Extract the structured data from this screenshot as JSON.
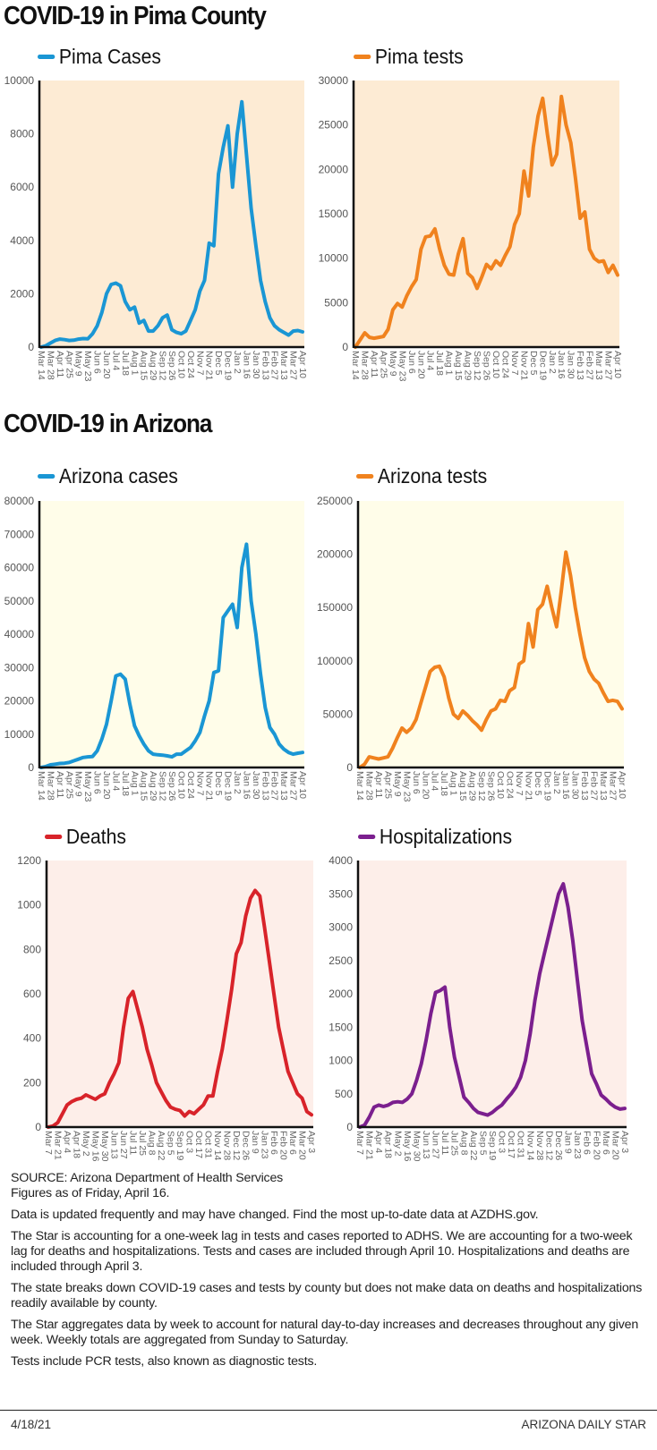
{
  "headings": {
    "pima": "COVID-19 in Pima County",
    "arizona": "COVID-19 in Arizona"
  },
  "chart_data": [
    {
      "type": "line",
      "legend": "Pima Cases",
      "color": "#1a96d4",
      "background": "#fdebd4",
      "ylim": [
        0,
        10000
      ],
      "yticks": [
        0,
        2000,
        4000,
        6000,
        8000,
        10000
      ],
      "x_tick_labels": [
        "Mar 14",
        "Mar 28",
        "Apr 11",
        "Apr 25",
        "May 9",
        "May 23",
        "Jun 6",
        "Jun 20",
        "Jul 4",
        "Jul 18",
        "Aug 1",
        "Aug 15",
        "Aug 29",
        "Sep 12",
        "Sep 26",
        "Oct 10",
        "Oct 24",
        "Nov 7",
        "Nov 21",
        "Dec 5",
        "Dec 19",
        "Jan 2",
        "Jan 16",
        "Jan 30",
        "Feb 13",
        "Feb 27",
        "Mar 13",
        "Mar 27",
        "Apr 10"
      ],
      "values": [
        0,
        50,
        150,
        250,
        300,
        280,
        250,
        260,
        300,
        320,
        310,
        500,
        800,
        1300,
        2000,
        2350,
        2400,
        2300,
        1700,
        1400,
        1500,
        900,
        1000,
        600,
        600,
        800,
        1100,
        1200,
        650,
        550,
        500,
        600,
        1000,
        1400,
        2100,
        2500,
        3900,
        3800,
        6500,
        7500,
        8300,
        6000,
        8000,
        9200,
        7200,
        5200,
        3800,
        2500,
        1700,
        1100,
        800,
        650,
        550,
        450,
        600,
        620,
        570
      ]
    },
    {
      "type": "line",
      "legend": "Pima tests",
      "color": "#f0821e",
      "background": "#fdebd4",
      "ylim": [
        0,
        30000
      ],
      "yticks": [
        0,
        5000,
        10000,
        15000,
        20000,
        25000,
        30000
      ],
      "x_tick_labels": [
        "Mar 14",
        "Mar 28",
        "Apr 11",
        "Apr 25",
        "May 9",
        "May 23",
        "Jun 6",
        "Jun 20",
        "Jul 4",
        "Jul 18",
        "Aug 1",
        "Aug 15",
        "Aug 29",
        "Sep 12",
        "Sep 26",
        "Oct 10",
        "Oct 24",
        "Nov 7",
        "Nov 21",
        "Dec 5",
        "Dec 19",
        "Jan 2",
        "Jan 16",
        "Jan 30",
        "Feb 13",
        "Feb 27",
        "Mar 13",
        "Mar 27",
        "Apr 10"
      ],
      "values": [
        0,
        800,
        1600,
        1100,
        1000,
        1100,
        1200,
        2000,
        4200,
        4900,
        4500,
        5800,
        6800,
        7600,
        11000,
        12400,
        12500,
        13300,
        11000,
        9200,
        8200,
        8100,
        10500,
        12200,
        8300,
        7800,
        6600,
        7900,
        9300,
        8800,
        9700,
        9200,
        10300,
        11300,
        13800,
        15000,
        19800,
        17000,
        22500,
        26000,
        28000,
        24000,
        20500,
        21700,
        28200,
        25000,
        23000,
        19000,
        14500,
        15200,
        11000,
        10000,
        9600,
        9700,
        8400,
        9200,
        8100
      ]
    },
    {
      "type": "line",
      "legend": "Arizona cases",
      "color": "#1a96d4",
      "background": "#fffde9",
      "ylim": [
        0,
        80000
      ],
      "yticks": [
        0,
        10000,
        20000,
        30000,
        40000,
        50000,
        60000,
        70000,
        80000
      ],
      "x_tick_labels": [
        "Mar 14",
        "Mar 28",
        "Apr 11",
        "Apr 25",
        "May 9",
        "May 23",
        "Jun 6",
        "Jun 20",
        "Jul 4",
        "Jul 18",
        "Aug 1",
        "Aug 15",
        "Aug 29",
        "Sep 12",
        "Sep 26",
        "Oct 10",
        "Oct 24",
        "Nov 7",
        "Nov 21",
        "Dec 5",
        "Dec 19",
        "Jan 2",
        "Jan 16",
        "Jan 30",
        "Feb 13",
        "Feb 27",
        "Mar 13",
        "Mar 27",
        "Apr 10"
      ],
      "values": [
        0,
        300,
        800,
        1000,
        1200,
        1300,
        1500,
        2000,
        2500,
        3000,
        3200,
        3300,
        5000,
        8500,
        13000,
        20000,
        27500,
        28000,
        26500,
        19000,
        12500,
        9500,
        7000,
        5000,
        4000,
        3800,
        3700,
        3500,
        3200,
        4000,
        4000,
        5000,
        6000,
        8000,
        10500,
        15500,
        20000,
        28500,
        29000,
        45000,
        47000,
        49000,
        42000,
        60000,
        67000,
        50000,
        40000,
        28000,
        18000,
        12000,
        10000,
        7000,
        5500,
        4500,
        4000,
        4300,
        4500
      ]
    },
    {
      "type": "line",
      "legend": "Arizona tests",
      "color": "#f0821e",
      "background": "#fffde9",
      "ylim": [
        0,
        250000
      ],
      "yticks": [
        0,
        50000,
        100000,
        150000,
        200000,
        250000
      ],
      "x_tick_labels": [
        "Mar 14",
        "Mar 28",
        "Apr 11",
        "Apr 25",
        "May 9",
        "May 23",
        "Jun 6",
        "Jun 20",
        "Jul 4",
        "Jul 18",
        "Aug 1",
        "Aug 15",
        "Aug 29",
        "Sep 12",
        "Sep 26",
        "Oct 10",
        "Oct 24",
        "Nov 7",
        "Nov 21",
        "Dec 5",
        "Dec 19",
        "Jan 2",
        "Jan 16",
        "Jan 30",
        "Feb 13",
        "Feb 27",
        "Mar 13",
        "Mar 27",
        "Apr 10"
      ],
      "values": [
        0,
        3000,
        10000,
        9000,
        8000,
        9000,
        10000,
        18000,
        28000,
        37000,
        33000,
        37000,
        45000,
        60000,
        75000,
        90000,
        94000,
        95000,
        85000,
        65000,
        50000,
        46000,
        53000,
        49000,
        44000,
        40000,
        35000,
        45000,
        53000,
        55000,
        63000,
        62000,
        72000,
        75000,
        97000,
        100000,
        135000,
        113000,
        148000,
        153000,
        170000,
        150000,
        132000,
        165000,
        202000,
        180000,
        150000,
        125000,
        103000,
        90000,
        83000,
        79000,
        70000,
        62000,
        63000,
        62000,
        55000
      ]
    },
    {
      "type": "line",
      "legend": "Deaths",
      "color": "#d8232a",
      "background": "#fdeee9",
      "ylim": [
        0,
        1200
      ],
      "yticks": [
        0,
        200,
        400,
        600,
        800,
        1000,
        1200
      ],
      "x_tick_labels": [
        "Mar 7",
        "Mar 21",
        "Apr 4",
        "Apr 18",
        "May 2",
        "May 16",
        "May 30",
        "Jun 13",
        "Jun 27",
        "Jul 11",
        "Jul 25",
        "Aug 8",
        "Aug 22",
        "Sep 5",
        "Sep 19",
        "Oct 3",
        "Oct 17",
        "Oct 31",
        "Nov 14",
        "Nov 28",
        "Dec 12",
        "Dec 26",
        "Jan 9",
        "Jan 23",
        "Feb 6",
        "Feb 20",
        "Mar 6",
        "Mar 20",
        "Apr 3"
      ],
      "values": [
        0,
        5,
        20,
        60,
        100,
        115,
        125,
        130,
        145,
        135,
        125,
        140,
        150,
        200,
        240,
        290,
        450,
        580,
        610,
        530,
        450,
        350,
        280,
        200,
        160,
        120,
        90,
        80,
        75,
        50,
        70,
        60,
        80,
        100,
        140,
        140,
        250,
        350,
        480,
        620,
        780,
        830,
        950,
        1030,
        1065,
        1040,
        900,
        750,
        600,
        450,
        350,
        250,
        200,
        150,
        130,
        70,
        55
      ]
    },
    {
      "type": "line",
      "legend": "Hospitalizations",
      "color": "#7b1f8e",
      "background": "#fdeee9",
      "ylim": [
        0,
        4000
      ],
      "yticks": [
        0,
        500,
        1000,
        1500,
        2000,
        2500,
        3000,
        3500,
        4000
      ],
      "x_tick_labels": [
        "Mar 7",
        "Mar 21",
        "Apr 4",
        "Apr 18",
        "May 2",
        "May 16",
        "May 30",
        "Jun 13",
        "Jun 27",
        "Jul 11",
        "Jul 25",
        "Aug 8",
        "Aug 22",
        "Sep 5",
        "Sep 19",
        "Oct 3",
        "Oct 17",
        "Oct 31",
        "Nov 14",
        "Nov 28",
        "Dec 12",
        "Dec 26",
        "Jan 9",
        "Jan 23",
        "Feb 6",
        "Feb 20",
        "Mar 6",
        "Mar 20",
        "Apr 3"
      ],
      "values": [
        0,
        30,
        150,
        300,
        330,
        310,
        330,
        370,
        380,
        370,
        420,
        500,
        700,
        950,
        1300,
        1700,
        2020,
        2050,
        2100,
        1500,
        1050,
        750,
        450,
        370,
        280,
        220,
        200,
        180,
        220,
        280,
        330,
        420,
        500,
        600,
        750,
        1000,
        1400,
        1900,
        2300,
        2600,
        2900,
        3200,
        3500,
        3650,
        3300,
        2800,
        2200,
        1600,
        1200,
        800,
        650,
        480,
        420,
        350,
        300,
        270,
        280
      ]
    }
  ],
  "notes": {
    "source": "SOURCE: Arizona Department of Health Services",
    "as_of": "Figures as of Friday, April 16.",
    "p1": "Data is updated frequently and may have changed. Find the most up-to-date data at AZDHS.gov.",
    "p2": "The Star is accounting for a one-week lag in tests and cases reported to ADHS. We are accounting for a two-week lag for deaths and hospitalizations. Tests and cases are included through April 10. Hospitalizations and deaths are included through April 3.",
    "p3": "The state breaks down COVID-19 cases and tests by county but does not make data on deaths and hospitalizations readily available by county.",
    "p4": "The Star aggregates data by week to account for natural day-to-day increases and decreases throughout any given week. Weekly totals are aggregated from Sunday to Saturday.",
    "p5": "Tests include PCR tests, also known as diagnostic tests."
  },
  "footer": {
    "date": "4/18/21",
    "publisher": "ARIZONA DAILY STAR"
  }
}
